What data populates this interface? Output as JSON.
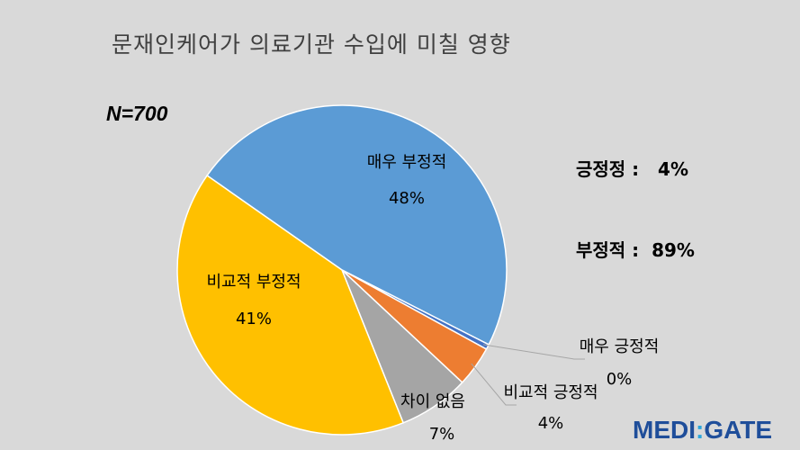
{
  "chart_data": {
    "type": "pie",
    "title": "문재인케어가 의료기관 수입에 미칠 영향",
    "sample_label": "N=700",
    "slices": [
      {
        "label": "매우 부정적",
        "value": 48,
        "value_label": "48%",
        "color": "#5b9bd5"
      },
      {
        "label": "매우 긍정적",
        "value": 0.5,
        "value_label": "0%",
        "color": "#4472c4"
      },
      {
        "label": "비교적 긍정적",
        "value": 4,
        "value_label": "4%",
        "color": "#ed7d31"
      },
      {
        "label": "차이 없음",
        "value": 7,
        "value_label": "7%",
        "color": "#a5a5a5"
      },
      {
        "label": "비교적 부정적",
        "value": 41,
        "value_label": "41%",
        "color": "#ffc000"
      }
    ]
  },
  "summary": {
    "positive_line": "긍정정 :   4%",
    "negative_line": "부정적 :  89%"
  },
  "brand": {
    "left": "MEDI",
    "sep": ":",
    "right": "GATE"
  }
}
